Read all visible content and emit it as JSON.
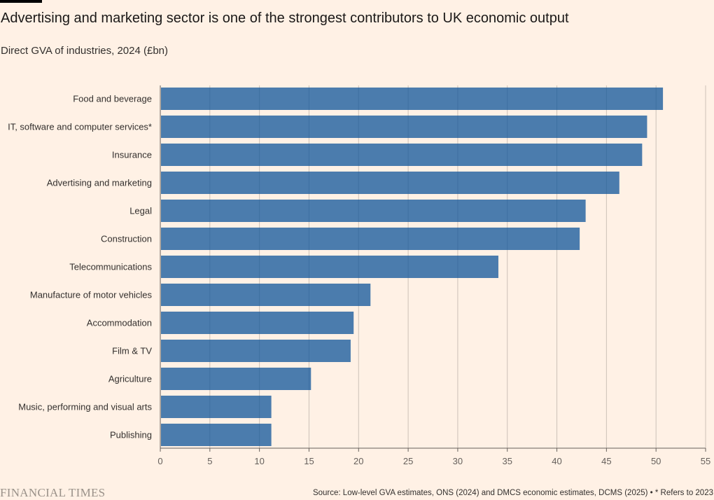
{
  "header": {
    "title": "Advertising and marketing sector is one of the strongest contributors to UK economic output",
    "subtitle": "Direct GVA of industries, 2024 (£bn)"
  },
  "footer": {
    "logo": "FINANCIAL TIMES",
    "source": "Source: Low-level GVA estimates, ONS (2024) and DMCS economic estimates, DCMS (2025) • * Refers to 2023"
  },
  "colors": {
    "bar": "#0f5499",
    "background": "#fff1e5"
  },
  "chart_data": {
    "type": "bar",
    "orientation": "horizontal",
    "categories": [
      "Food and beverage",
      "IT, software and computer services*",
      "Insurance",
      "Advertising and marketing",
      "Legal",
      "Construction",
      "Telecommunications",
      "Manufacture of motor vehicles",
      "Accommodation",
      "Film & TV",
      "Agriculture",
      "Music, performing and visual arts",
      "Publishing"
    ],
    "values": [
      50.7,
      49.1,
      48.6,
      46.3,
      42.9,
      42.3,
      34.1,
      21.2,
      19.5,
      19.2,
      15.2,
      11.2,
      11.2
    ],
    "xlim": [
      0,
      55
    ],
    "xticks": [
      0,
      5,
      10,
      15,
      20,
      25,
      30,
      35,
      40,
      45,
      50,
      55
    ],
    "grid": true
  }
}
